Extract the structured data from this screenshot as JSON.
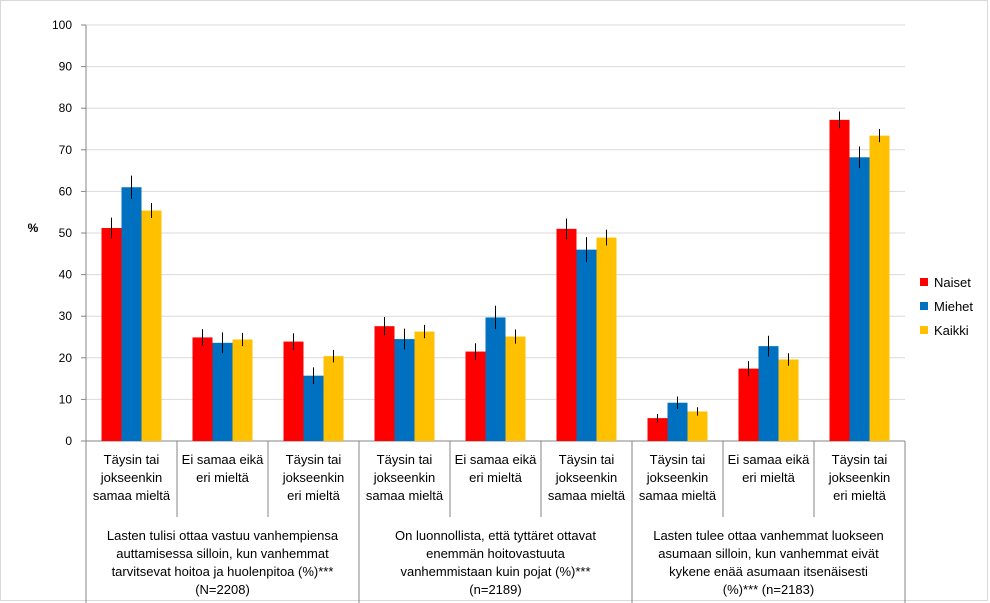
{
  "chart_data": {
    "type": "bar",
    "ylabel": "%",
    "ylim": [
      0,
      100
    ],
    "yticks": [
      "0",
      "10",
      "20",
      "30",
      "40",
      "50",
      "60",
      "70",
      "80",
      "90",
      "100"
    ],
    "grid": true,
    "legend_position": "right",
    "categories": [
      "Täysin tai jokseenkin samaa mieltä",
      "Ei samaa eikä eri mieltä",
      "Täysin tai jokseenkin eri mieltä",
      "Täysin tai jokseenkin samaa mieltä",
      "Ei samaa eikä eri mieltä",
      "Täysin tai jokseenkin samaa mieltä",
      "Täysin tai jokseenkin samaa mieltä",
      "Ei samaa eikä eri mieltä",
      "Täysin tai jokseenkin eri mieltä"
    ],
    "category_lines": [
      [
        "Täysin tai",
        "jokseenkin",
        "samaa mieltä"
      ],
      [
        "Ei samaa eikä",
        "eri mieltä"
      ],
      [
        "Täysin tai",
        "jokseenkin",
        "eri mieltä"
      ],
      [
        "Täysin tai",
        "jokseenkin",
        "samaa mieltä"
      ],
      [
        "Ei samaa eikä",
        "eri mieltä"
      ],
      [
        "Täysin tai",
        "jokseenkin",
        "samaa mieltä"
      ],
      [
        "Täysin tai",
        "jokseenkin",
        "samaa mieltä"
      ],
      [
        "Ei samaa eikä",
        "eri mieltä"
      ],
      [
        "Täysin tai",
        "jokseenkin",
        "eri mieltä"
      ]
    ],
    "groups": [
      {
        "label": "Lasten tulisi ottaa vastuu vanhempiensa auttamisessa silloin, kun vanhemmat tarvitsevat hoitoa ja huolenpitoa (%)*** (N=2208)",
        "lines": [
          "Lasten tulisi ottaa vastuu vanhempiensa",
          "auttamisessa silloin, kun vanhemmat",
          "tarvitsevat hoitoa ja huolenpitoa (%)***",
          "(N=2208)"
        ]
      },
      {
        "label": "On luonnollista, että tyttäret ottavat enemmän hoitovastuuta vanhemmistaan kuin pojat (%)*** (n=2189)",
        "lines": [
          "On luonnollista, että tyttäret ottavat",
          "enemmän hoitovastuuta",
          "vanhemmistaan kuin pojat (%)***",
          "(n=2189)"
        ]
      },
      {
        "label": "Lasten tulee ottaa vanhemmat luokseen asumaan silloin, kun vanhemmat eivät kykene enää asumaan itsenäisesti (%)*** (n=2183)",
        "lines": [
          "Lasten tulee ottaa vanhemmat luokseen",
          "asumaan silloin, kun vanhemmat eivät",
          "kykene enää asumaan itsenäisesti",
          "(%)*** (n=2183)"
        ]
      }
    ],
    "series": [
      {
        "name": "Naiset",
        "color": "#ff0000",
        "values": [
          51.2,
          24.9,
          23.9,
          27.6,
          21.5,
          51.0,
          5.5,
          17.4,
          77.2
        ],
        "error": [
          2.5,
          2.0,
          2.0,
          2.2,
          2.0,
          2.5,
          1.0,
          1.8,
          2.0
        ]
      },
      {
        "name": "Miehet",
        "color": "#0070c0",
        "values": [
          61.0,
          23.6,
          15.7,
          24.5,
          29.7,
          46.0,
          9.2,
          22.8,
          68.2
        ],
        "error": [
          2.8,
          2.5,
          2.0,
          2.5,
          2.8,
          3.0,
          1.5,
          2.5,
          2.6
        ]
      },
      {
        "name": "Kaikki",
        "color": "#ffc000",
        "values": [
          55.4,
          24.4,
          20.4,
          26.3,
          25.1,
          48.9,
          7.1,
          19.6,
          73.4
        ],
        "error": [
          1.8,
          1.6,
          1.5,
          1.6,
          1.7,
          1.9,
          1.0,
          1.5,
          1.6
        ]
      }
    ]
  }
}
